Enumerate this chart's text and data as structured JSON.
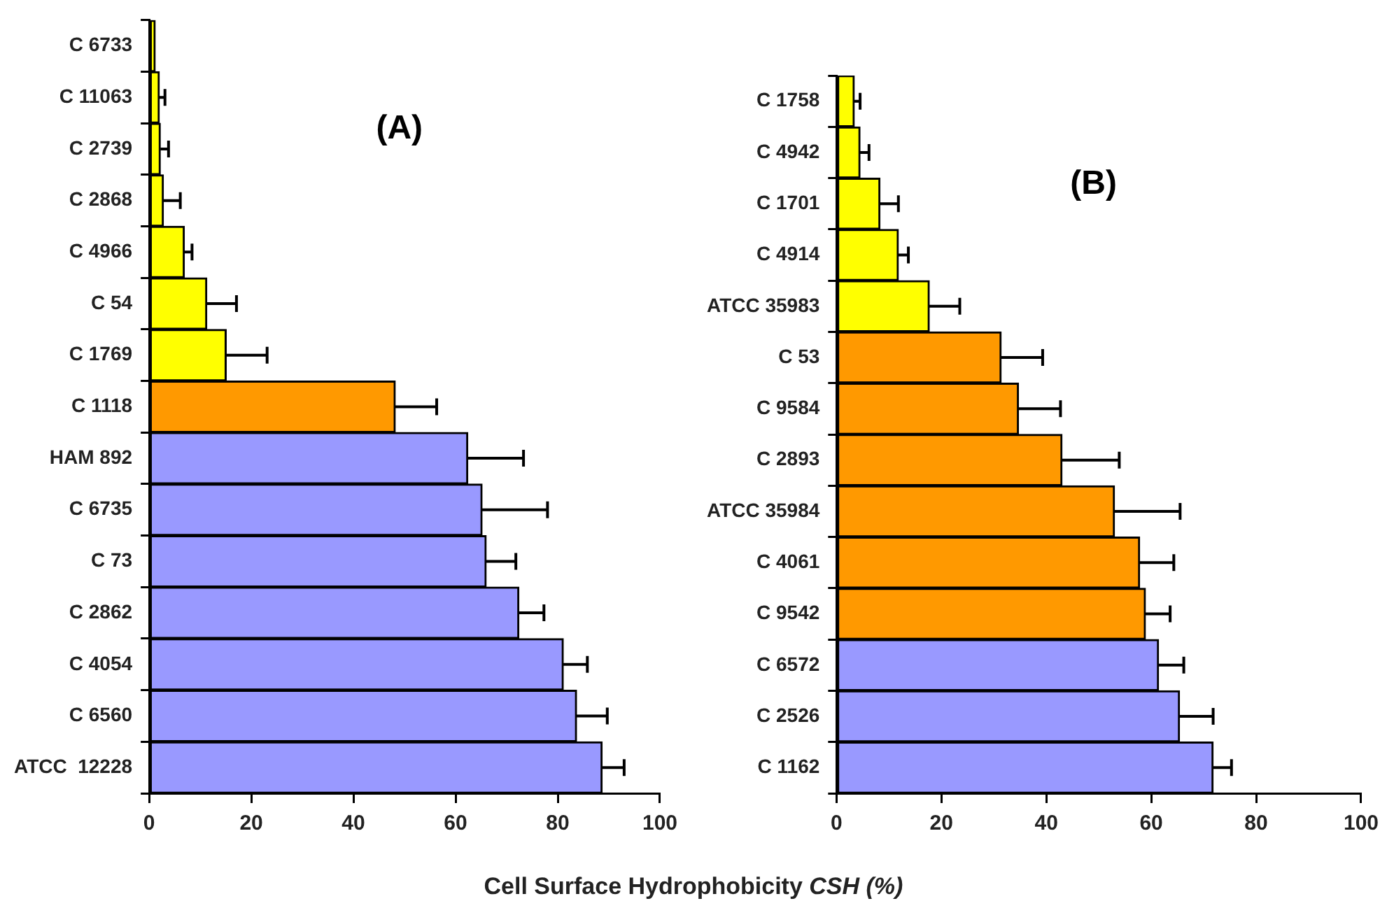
{
  "chart_data": [
    {
      "type": "bar",
      "orientation": "horizontal",
      "title": "(A)",
      "xlabel": "Cell Surface Hydrophobicity CSH (%)",
      "categories": [
        "C 6733",
        "C 11063",
        "C 2739",
        "C 2868",
        "C 4966",
        "C 54",
        "C 1769",
        "C 1118",
        "HAM 892",
        "C 6735",
        "C 73",
        "C 2862",
        "C 4054",
        "C 6560",
        "ATCC  12228"
      ],
      "values": [
        1.2,
        2.0,
        2.2,
        2.8,
        6.9,
        11.3,
        15.1,
        48.2,
        62.4,
        65.2,
        66.0,
        72.4,
        81.1,
        83.7,
        88.7
      ],
      "errors": [
        null,
        [
          2.0,
          3.1
        ],
        [
          2.2,
          3.8
        ],
        [
          2.8,
          6.1
        ],
        [
          6.9,
          8.4
        ],
        [
          11.3,
          17.1
        ],
        [
          15.1,
          23.1
        ],
        [
          48.2,
          56.3
        ],
        [
          62.4,
          73.3
        ],
        [
          65.2,
          78.0
        ],
        [
          66.0,
          71.8
        ],
        [
          72.4,
          77.3
        ],
        [
          81.1,
          85.8
        ],
        [
          83.7,
          89.7
        ],
        [
          88.7,
          93.0
        ]
      ],
      "colors": [
        "#ffff00",
        "#ffff00",
        "#ffff00",
        "#ffff00",
        "#ffff00",
        "#ffff00",
        "#ffff00",
        "#ff9900",
        "#9999ff",
        "#9999ff",
        "#9999ff",
        "#9999ff",
        "#9999ff",
        "#9999ff",
        "#9999ff"
      ],
      "xlim": [
        0,
        100
      ],
      "xticks": [
        0,
        20,
        40,
        60,
        80,
        100
      ]
    },
    {
      "type": "bar",
      "orientation": "horizontal",
      "title": "(B)",
      "categories": [
        "C 1758",
        "C 4942",
        "C 1701",
        "C 4914",
        "ATCC 35983",
        "C 53",
        "C 9584",
        "C 2893",
        "ATCC 35984",
        "C 4061",
        "C 9542",
        "C 6572",
        "C 2526",
        "C 1162"
      ],
      "values": [
        3.4,
        4.5,
        8.3,
        11.8,
        17.7,
        31.4,
        34.7,
        43.0,
        53.0,
        57.8,
        58.9,
        61.4,
        65.4,
        71.8
      ],
      "errors": [
        [
          3.4,
          4.5
        ],
        [
          4.5,
          6.2
        ],
        [
          8.3,
          11.8
        ],
        [
          11.8,
          13.7
        ],
        [
          17.7,
          23.5
        ],
        [
          31.4,
          39.3
        ],
        [
          34.7,
          42.7
        ],
        [
          43.0,
          53.9
        ],
        [
          53.0,
          65.5
        ],
        [
          57.8,
          64.3
        ],
        [
          58.9,
          63.6
        ],
        [
          61.4,
          66.2
        ],
        [
          65.4,
          71.8
        ],
        [
          71.8,
          75.3
        ]
      ],
      "colors": [
        "#ffff00",
        "#ffff00",
        "#ffff00",
        "#ffff00",
        "#ffff00",
        "#ff9900",
        "#ff9900",
        "#ff9900",
        "#ff9900",
        "#ff9900",
        "#ff9900",
        "#9999ff",
        "#9999ff",
        "#9999ff"
      ],
      "xlim": [
        0,
        100
      ],
      "xticks": [
        0,
        20,
        40,
        60,
        80,
        100
      ]
    }
  ]
}
